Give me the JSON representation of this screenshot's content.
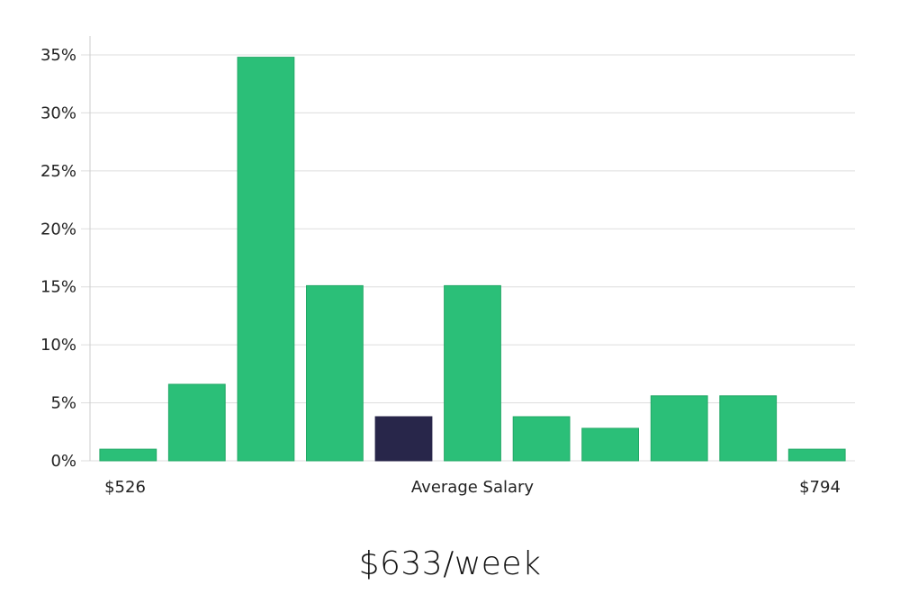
{
  "chart_data": {
    "type": "bar",
    "values": [
      1,
      6.6,
      34.8,
      15.1,
      3.8,
      15.1,
      3.8,
      2.8,
      5.6,
      5.6,
      1
    ],
    "highlight_index": 4,
    "ylim": [
      0,
      35
    ],
    "yticks": [
      "0%",
      "5%",
      "10%",
      "15%",
      "20%",
      "25%",
      "30%",
      "35%"
    ],
    "ytick_values": [
      0,
      5,
      10,
      15,
      20,
      25,
      30,
      35
    ],
    "x_min_label": "$526",
    "x_max_label": "$794",
    "xlabel": "Average Salary",
    "grid": true
  },
  "colors": {
    "bar": "#2bbf78",
    "bar_stroke": "#22a866",
    "highlight": "#28264a",
    "grid": "#dddddd",
    "axis": "#cccccc"
  },
  "caption": "$633/week"
}
